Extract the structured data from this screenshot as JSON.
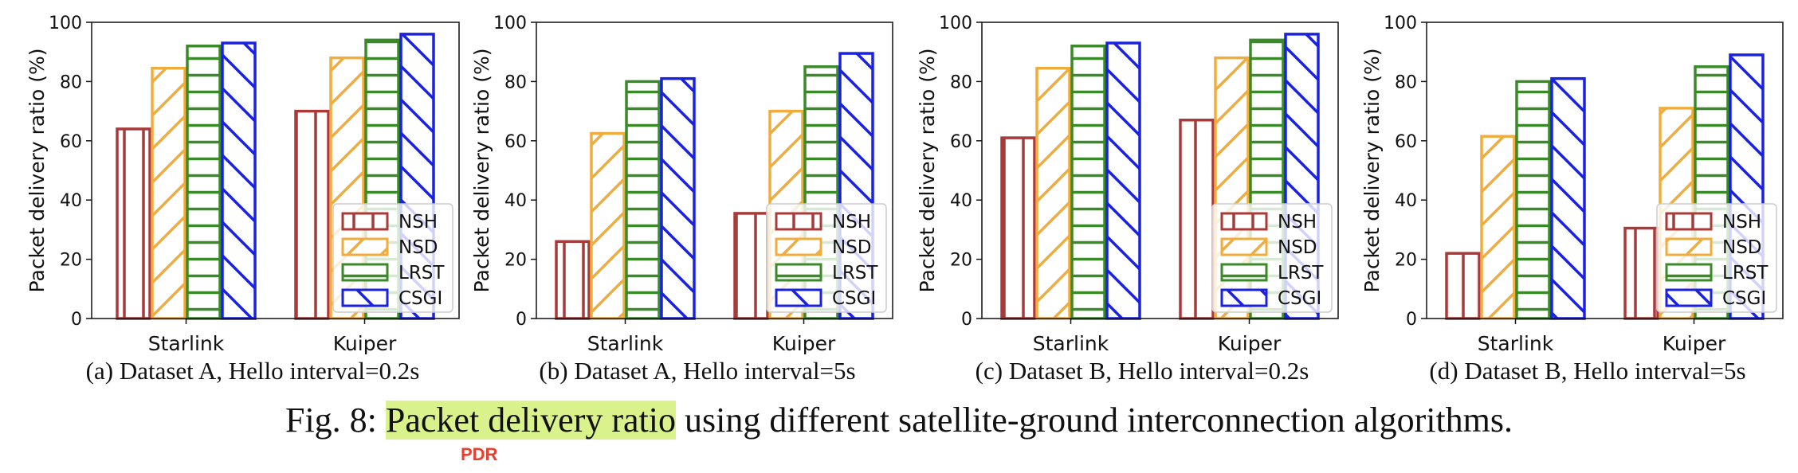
{
  "chart_data": [
    {
      "type": "bar",
      "title": "",
      "xlabel": "",
      "ylabel": "Packet delivery ratio (%)",
      "ylim": [
        0,
        100
      ],
      "yticks": [
        0,
        20,
        40,
        60,
        80,
        100
      ],
      "categories": [
        "Starlink",
        "Kuiper"
      ],
      "legend_position": "lower-right",
      "series": [
        {
          "name": "NSH",
          "values": [
            64,
            70
          ]
        },
        {
          "name": "NSD",
          "values": [
            84.5,
            88
          ]
        },
        {
          "name": "LRST",
          "values": [
            92,
            94
          ]
        },
        {
          "name": "CSGI",
          "values": [
            93,
            96
          ]
        }
      ],
      "caption": "(a) Dataset A, Hello interval=0.2s"
    },
    {
      "type": "bar",
      "title": "",
      "xlabel": "",
      "ylabel": "Packet delivery ratio (%)",
      "ylim": [
        0,
        100
      ],
      "yticks": [
        0,
        20,
        40,
        60,
        80,
        100
      ],
      "categories": [
        "Starlink",
        "Kuiper"
      ],
      "legend_position": "lower-right",
      "series": [
        {
          "name": "NSH",
          "values": [
            26,
            35.5
          ]
        },
        {
          "name": "NSD",
          "values": [
            62.5,
            70
          ]
        },
        {
          "name": "LRST",
          "values": [
            80,
            85
          ]
        },
        {
          "name": "CSGI",
          "values": [
            81,
            89.5
          ]
        }
      ],
      "caption": "(b) Dataset A, Hello interval=5s"
    },
    {
      "type": "bar",
      "title": "",
      "xlabel": "",
      "ylabel": "Packet delivery ratio (%)",
      "ylim": [
        0,
        100
      ],
      "yticks": [
        0,
        20,
        40,
        60,
        80,
        100
      ],
      "categories": [
        "Starlink",
        "Kuiper"
      ],
      "legend_position": "lower-right",
      "series": [
        {
          "name": "NSH",
          "values": [
            61,
            67
          ]
        },
        {
          "name": "NSD",
          "values": [
            84.5,
            88
          ]
        },
        {
          "name": "LRST",
          "values": [
            92,
            94
          ]
        },
        {
          "name": "CSGI",
          "values": [
            93,
            96
          ]
        }
      ],
      "caption": "(c) Dataset B, Hello interval=0.2s"
    },
    {
      "type": "bar",
      "title": "",
      "xlabel": "",
      "ylabel": "Packet delivery ratio (%)",
      "ylim": [
        0,
        100
      ],
      "yticks": [
        0,
        20,
        40,
        60,
        80,
        100
      ],
      "categories": [
        "Starlink",
        "Kuiper"
      ],
      "legend_position": "lower-right",
      "series": [
        {
          "name": "NSH",
          "values": [
            22,
            30.5
          ]
        },
        {
          "name": "NSD",
          "values": [
            61.5,
            71
          ]
        },
        {
          "name": "LRST",
          "values": [
            80,
            85
          ]
        },
        {
          "name": "CSGI",
          "values": [
            81,
            89
          ]
        }
      ],
      "caption": "(d) Dataset B, Hello interval=5s"
    }
  ],
  "series_colors": {
    "NSH": "#a83a3a",
    "NSD": "#f0ad3c",
    "LRST": "#3b8a2a",
    "CSGI": "#1a22e0"
  },
  "figure_caption": {
    "prefix": "Fig. 8: ",
    "highlight": "Packet delivery ratio",
    "rest": " using different satellite-ground interconnection algorithms.",
    "annotation": "PDR"
  }
}
